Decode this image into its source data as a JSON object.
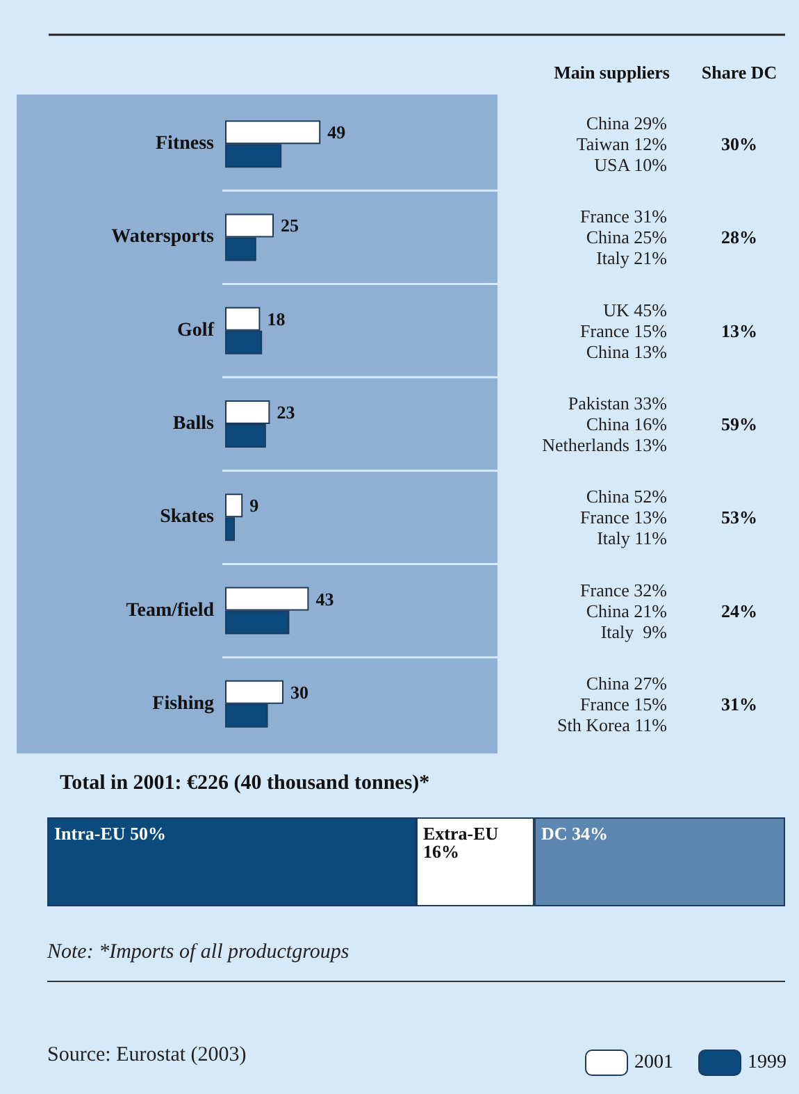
{
  "chart_data": [
    {
      "type": "bar",
      "orientation": "horizontal",
      "categories": [
        "Fitness",
        "Watersports",
        "Golf",
        "Balls",
        "Skates",
        "Team/field",
        "Fishing"
      ],
      "series": [
        {
          "name": "2001",
          "color": "#ffffff",
          "values": [
            49,
            25,
            18,
            23,
            9,
            43,
            30
          ],
          "value_labels": [
            "49",
            "25",
            "18",
            "23",
            "9",
            "43",
            "30"
          ]
        },
        {
          "name": "1999",
          "color": "#0d4a7c",
          "values": [
            29,
            16,
            19,
            21,
            5,
            33,
            22
          ]
        }
      ],
      "legend": "bottom right",
      "annotations": [
        "Main suppliers",
        "Share DC",
        "China 29%\nTaiwan 12%\nUSA 10%",
        "30%",
        "France 31%\nChina 25%\nItaly 21%",
        "28%",
        "UK 45%\nFrance 15%\nChina 13%",
        "13%",
        "Pakistan 33%\nChina 16%\nNetherlands 13%",
        "59%",
        "China 52%\nFrance 13%\nItaly 11%",
        "53%",
        "France 32%\nChina 21%\nItaly  9%",
        "24%",
        "China 27%\nFrance 15%\nSth Korea 11%",
        "31%"
      ]
    },
    {
      "type": "bar",
      "orientation": "horizontal",
      "stacked": true,
      "title": "Total in 2001: €226 (40 thousand tonnes)*",
      "categories": [
        null
      ],
      "series": [
        {
          "color": "#0d4a7c",
          "values": [
            50
          ],
          "value_labels": [
            "Intra-EU 50%"
          ]
        },
        {
          "color": "#ffffff",
          "values": [
            16
          ],
          "value_labels": [
            "Extra-EU\n16%"
          ]
        },
        {
          "color": "#5b87b0",
          "values": [
            34
          ],
          "value_labels": [
            "DC 34%"
          ]
        }
      ],
      "annotations": [
        "Note: *Imports of all productgroups",
        "Source: Eurostat (2003)"
      ]
    }
  ]
}
